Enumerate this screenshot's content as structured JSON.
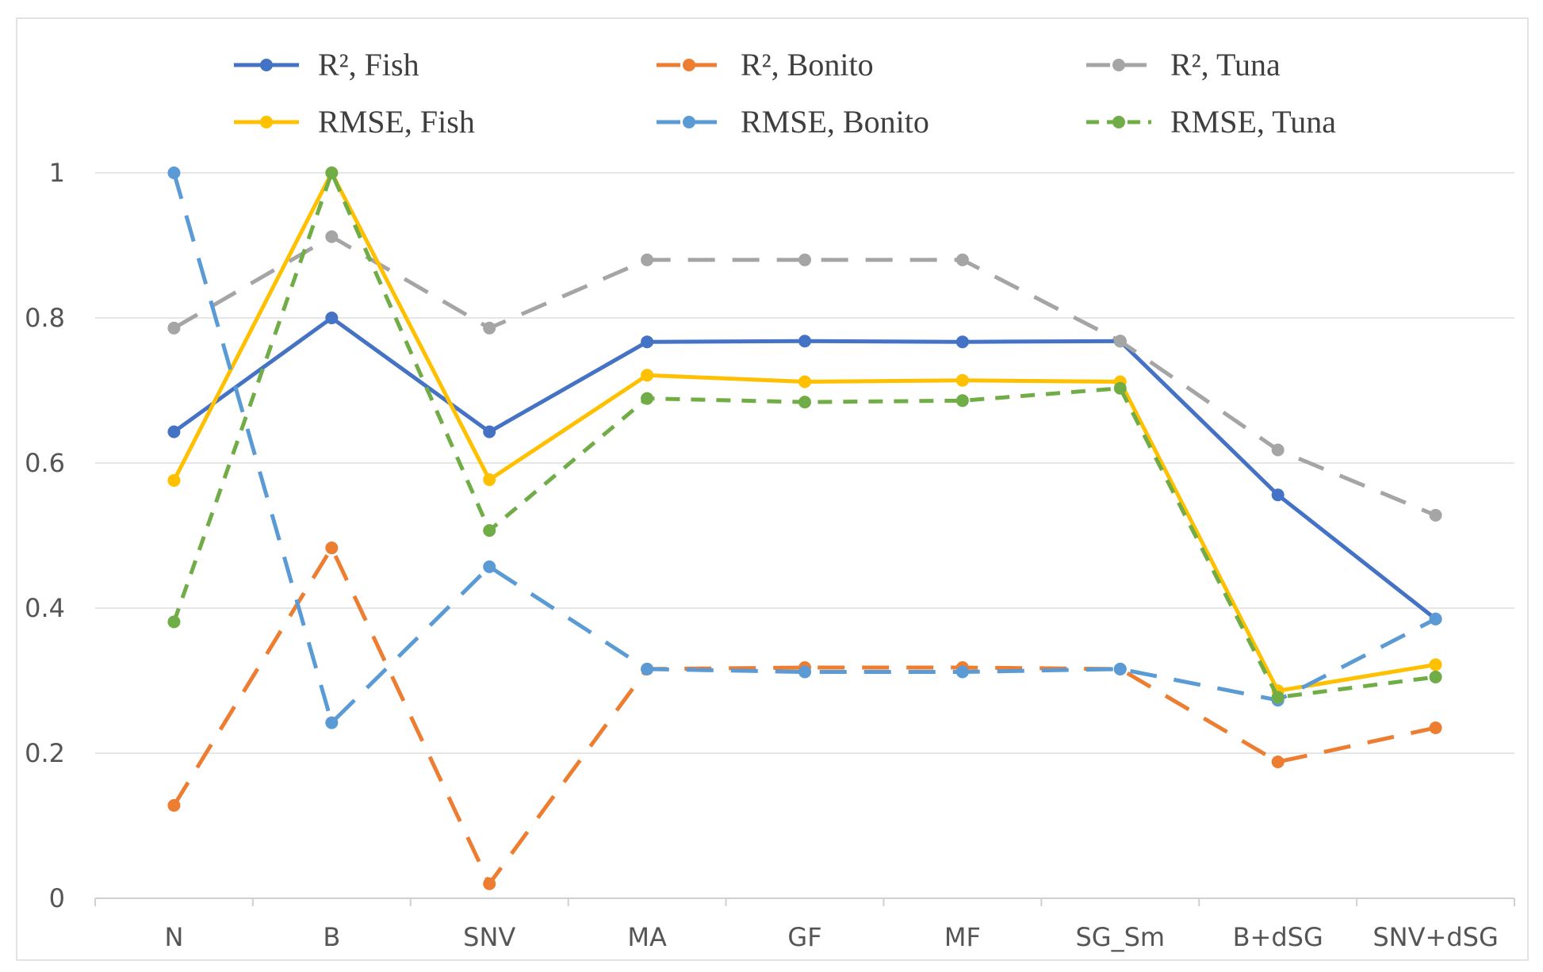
{
  "chart_data": {
    "type": "line",
    "title": "",
    "xlabel": "",
    "ylabel": "",
    "ylim": [
      0,
      1
    ],
    "yticks": [
      "0",
      "0.2",
      "0.4",
      "0.6",
      "0.8",
      "1"
    ],
    "ytick_values": [
      0,
      0.2,
      0.4,
      0.6,
      0.8,
      1
    ],
    "grid": true,
    "legend_position": "top",
    "categories": [
      "N",
      "B",
      "SNV",
      "MA",
      "GF",
      "MF",
      "SG_Sm",
      "B+dSG",
      "SNV+dSG"
    ],
    "series": [
      {
        "id": "r2-fish",
        "name": "R², Fish",
        "color": "#4472C4",
        "dash": "solid",
        "values": [
          0.643,
          0.8,
          0.643,
          0.767,
          0.768,
          0.767,
          0.768,
          0.556,
          0.385
        ]
      },
      {
        "id": "r2-bonito",
        "name": "R², Bonito",
        "color": "#ED7D31",
        "dash": "long",
        "values": [
          0.128,
          0.483,
          0.02,
          0.316,
          0.318,
          0.318,
          0.316,
          0.188,
          0.235
        ]
      },
      {
        "id": "r2-tuna",
        "name": "R², Tuna",
        "color": "#A5A5A5",
        "dash": "long",
        "values": [
          0.786,
          0.912,
          0.786,
          0.88,
          0.88,
          0.88,
          0.768,
          0.618,
          0.528
        ]
      },
      {
        "id": "rmse-fish",
        "name": "RMSE, Fish",
        "color": "#FFC000",
        "dash": "solid",
        "values": [
          0.576,
          1.0,
          0.577,
          0.721,
          0.712,
          0.714,
          0.712,
          0.286,
          0.322
        ]
      },
      {
        "id": "rmse-bonito",
        "name": "RMSE, Bonito",
        "color": "#5B9BD5",
        "dash": "long",
        "values": [
          1.0,
          0.242,
          0.457,
          0.316,
          0.312,
          0.312,
          0.316,
          0.273,
          0.385
        ]
      },
      {
        "id": "rmse-tuna",
        "name": "RMSE, Tuna",
        "color": "#70AD47",
        "dash": "short",
        "values": [
          0.381,
          1.0,
          0.507,
          0.689,
          0.684,
          0.686,
          0.703,
          0.277,
          0.305
        ]
      }
    ]
  }
}
